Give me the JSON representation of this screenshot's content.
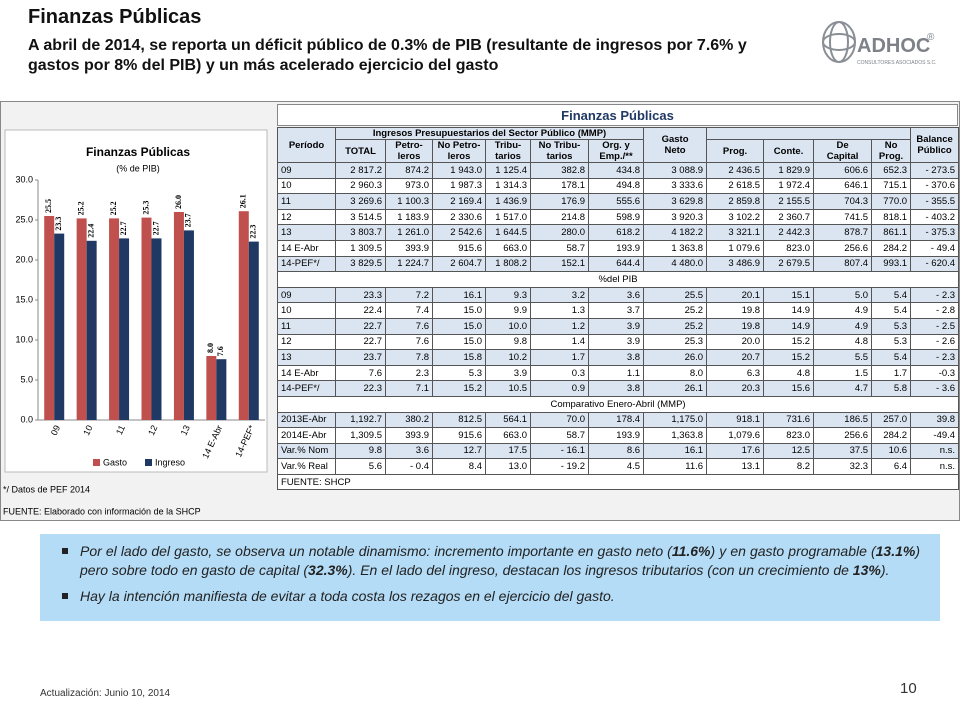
{
  "header": {
    "title": "Finanzas Públicas",
    "subtitle": "A abril de 2014, se reporta un déficit público  de 0.3% de PIB (resultante de  ingresos por 7.6%  y gastos por 8% del PIB) y un más acelerado  ejercicio del gasto"
  },
  "logo": {
    "name": "ADHOC",
    "mark": "®",
    "tagline": "CONSULTORES ASOCIADOS S.C."
  },
  "chart_data": {
    "type": "bar",
    "title": "Finanzas Públicas",
    "subtitle": "(% de PIB)",
    "categories": [
      "09",
      "10",
      "11",
      "12",
      "13",
      "14 E-Abr",
      "14-PEF*"
    ],
    "series": [
      {
        "name": "Gasto",
        "color": "#c0504d",
        "values": [
          25.5,
          25.2,
          25.2,
          25.3,
          26.0,
          8.0,
          26.1
        ],
        "value_labels": [
          "25.5",
          "25.2",
          "25.2",
          "25.3",
          "26.0",
          "8.0",
          "26.1"
        ]
      },
      {
        "name": "Ingreso",
        "color": "#1f3864",
        "values": [
          23.3,
          22.4,
          22.7,
          22.7,
          23.7,
          7.6,
          22.3
        ]
      }
    ],
    "ylim": [
      0,
      30
    ],
    "yticks": [
      {
        "value": 0,
        "label": "0.0"
      },
      {
        "value": 5,
        "label": "5.0"
      },
      {
        "value": 10,
        "label": "10.0"
      },
      {
        "value": 15,
        "label": "15.0"
      },
      {
        "value": 20,
        "label": "20.0"
      },
      {
        "value": 25,
        "label": "25.0"
      },
      {
        "value": 30,
        "label": "30.0"
      }
    ],
    "footnote": "*/ Datos de PEF 2014",
    "source": "FUENTE: Elaborado con información de la SHCP"
  },
  "table": {
    "title": "Finanzas Públicas",
    "header": {
      "period": "Período",
      "income": "Ingresos Presupuestarios del Sector Público (MMP)",
      "spending": "Gasto\nNeto",
      "balance": "Balance\nPúblico",
      "sub": [
        "TOTAL",
        "Petro-\nleros",
        "No Petro-\nleros",
        "Tribu-\ntarios",
        "No Tribu-\ntarios",
        "Org. y\nEmp./**",
        "Prog.",
        "Conte.",
        "De\nCapital",
        "No\nProg."
      ]
    },
    "sections": [
      {
        "rows": [
          [
            "09",
            "2 817.2",
            "874.2",
            "1 943.0",
            "1 125.4",
            "382.8",
            "434.8",
            "3 088.9",
            "2 436.5",
            "1 829.9",
            "606.6",
            "652.3",
            "- 273.5"
          ],
          [
            "10",
            "2 960.3",
            "973.0",
            "1 987.3",
            "1 314.3",
            "178.1",
            "494.8",
            "3 333.6",
            "2 618.5",
            "1 972.4",
            "646.1",
            "715.1",
            "- 370.6"
          ],
          [
            "11",
            "3 269.6",
            "1 100.3",
            "2 169.4",
            "1 436.9",
            "176.9",
            "555.6",
            "3 629.8",
            "2 859.8",
            "2 155.5",
            "704.3",
            "770.0",
            "- 355.5"
          ],
          [
            "12",
            "3 514.5",
            "1 183.9",
            "2 330.6",
            "1 517.0",
            "214.8",
            "598.9",
            "3 920.3",
            "3 102.2",
            "2 360.7",
            "741.5",
            "818.1",
            "- 403.2"
          ],
          [
            "13",
            "3 803.7",
            "1 261.0",
            "2 542.6",
            "1 644.5",
            "280.0",
            "618.2",
            "4 182.2",
            "3 321.1",
            "2 442.3",
            "878.7",
            "861.1",
            "- 375.3"
          ],
          [
            "14 E-Abr",
            "1 309.5",
            "393.9",
            "915.6",
            "663.0",
            "58.7",
            "193.9",
            "1 363.8",
            "1 079.6",
            "823.0",
            "256.6",
            "284.2",
            "- 49.4"
          ],
          [
            "14-PEF*/",
            "3 829.5",
            "1 224.7",
            "2 604.7",
            "1 808.2",
            "152.1",
            "644.4",
            "4 480.0",
            "3 486.9",
            "2 679.5",
            "807.4",
            "993.1",
            "- 620.4"
          ]
        ]
      },
      {
        "title": "%del PIB",
        "rows": [
          [
            "09",
            "23.3",
            "7.2",
            "16.1",
            "9.3",
            "3.2",
            "3.6",
            "25.5",
            "20.1",
            "15.1",
            "5.0",
            "5.4",
            "- 2.3"
          ],
          [
            "10",
            "22.4",
            "7.4",
            "15.0",
            "9.9",
            "1.3",
            "3.7",
            "25.2",
            "19.8",
            "14.9",
            "4.9",
            "5.4",
            "- 2.8"
          ],
          [
            "11",
            "22.7",
            "7.6",
            "15.0",
            "10.0",
            "1.2",
            "3.9",
            "25.2",
            "19.8",
            "14.9",
            "4.9",
            "5.3",
            "- 2.5"
          ],
          [
            "12",
            "22.7",
            "7.6",
            "15.0",
            "9.8",
            "1.4",
            "3.9",
            "25.3",
            "20.0",
            "15.2",
            "4.8",
            "5.3",
            "- 2.6"
          ],
          [
            "13",
            "23.7",
            "7.8",
            "15.8",
            "10.2",
            "1.7",
            "3.8",
            "26.0",
            "20.7",
            "15.2",
            "5.5",
            "5.4",
            "- 2.3"
          ],
          [
            "14 E-Abr",
            "7.6",
            "2.3",
            "5.3",
            "3.9",
            "0.3",
            "1.1",
            "8.0",
            "6.3",
            "4.8",
            "1.5",
            "1.7",
            "-0.3"
          ],
          [
            "14-PEF*/",
            "22.3",
            "7.1",
            "15.2",
            "10.5",
            "0.9",
            "3.8",
            "26.1",
            "20.3",
            "15.6",
            "4.7",
            "5.8",
            "- 3.6"
          ]
        ]
      },
      {
        "title": "Comparativo Enero-Abril (MMP)",
        "rows": [
          [
            "2013E-Abr",
            "1,192.7",
            "380.2",
            "812.5",
            "564.1",
            "70.0",
            "178.4",
            "1,175.0",
            "918.1",
            "731.6",
            "186.5",
            "257.0",
            "39.8"
          ],
          [
            "2014E-Abr",
            "1,309.5",
            "393.9",
            "915.6",
            "663.0",
            "58.7",
            "193.9",
            "1,363.8",
            "1,079.6",
            "823.0",
            "256.6",
            "284.2",
            "-49.4"
          ],
          [
            "Var.% Nom",
            "9.8",
            "3.6",
            "12.7",
            "17.5",
            "- 16.1",
            "8.6",
            "16.1",
            "17.6",
            "12.5",
            "37.5",
            "10.6",
            "n.s."
          ],
          [
            "Var.% Real",
            "5.6",
            "- 0.4",
            "8.4",
            "13.0",
            "- 19.2",
            "4.5",
            "11.6",
            "13.1",
            "8.2",
            "32.3",
            "6.4",
            "n.s."
          ]
        ]
      }
    ],
    "source": "FUENTE: SHCP"
  },
  "bullets": [
    [
      "Por el lado del gasto, se observa un notable dinamismo: incremento importante en gasto neto (",
      "11.6%",
      ") y en gasto programable (",
      "13.1%",
      ") pero sobre todo en gasto de capital (",
      "32.3%",
      "). En el lado del ingreso, destacan los ingresos tributarios (con un crecimiento de ",
      "13%",
      ")."
    ],
    [
      "Hay la intención manifiesta de evitar a toda costa los rezagos en el ejercicio del gasto."
    ]
  ],
  "footer": {
    "updated": "Actualización:  Junio 10, 2014",
    "page": "10"
  }
}
